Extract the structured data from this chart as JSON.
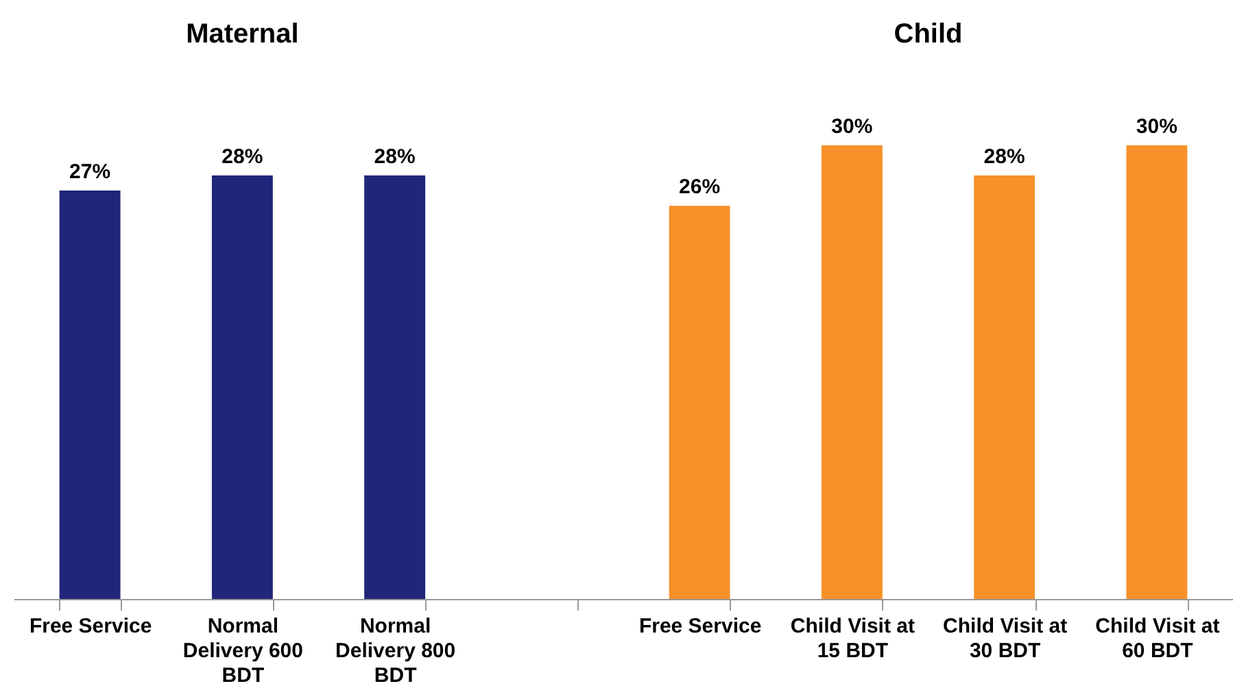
{
  "chart_data": {
    "type": "bar",
    "categories": [
      "Free Service",
      "Normal Delivery 600 BDT",
      "Normal Delivery 800 BDT",
      null,
      "Free Service",
      "Child Visit at 15 BDT",
      "Child Visit at 30 BDT",
      "Child Visit at 60 BDT"
    ],
    "values": [
      27,
      28,
      28,
      null,
      26,
      30,
      28,
      30
    ],
    "value_labels": [
      "27%",
      "28%",
      "28%",
      null,
      "26%",
      "30%",
      "28%",
      "30%"
    ],
    "colors": [
      "#20267a",
      "#20267a",
      "#20267a",
      "#ffffff",
      "#f7912a",
      "#f7912a",
      "#f7912a",
      "#f7912a"
    ],
    "annotations": [
      "Maternal",
      "Child"
    ]
  }
}
